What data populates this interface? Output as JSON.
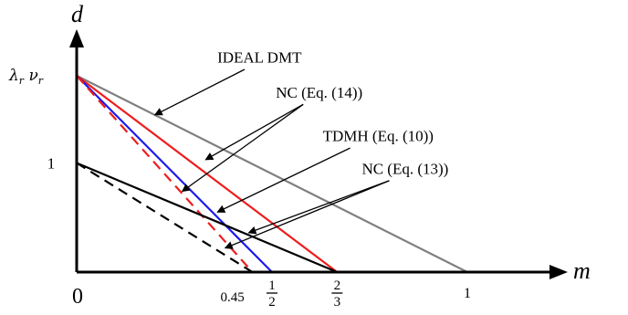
{
  "chart_data": {
    "type": "line",
    "xlabel": "m",
    "ylabel": "d",
    "xlim": [
      0,
      1.2
    ],
    "ylim": [
      0,
      2.2
    ],
    "x_ticks": [
      {
        "value": 0,
        "label": "0",
        "kind": "plain"
      },
      {
        "value": 0.45,
        "label": "0.45",
        "kind": "small"
      },
      {
        "value": 0.5,
        "label": "1/2",
        "kind": "frac",
        "num": "1",
        "den": "2"
      },
      {
        "value": 0.6667,
        "label": "2/3",
        "kind": "frac",
        "num": "2",
        "den": "3"
      },
      {
        "value": 1,
        "label": "1",
        "kind": "plain"
      }
    ],
    "y_ticks": [
      {
        "value": 1,
        "label": "1",
        "kind": "plain"
      },
      {
        "value": 1.8,
        "label": "λr νr",
        "kind": "greek",
        "main1": "λ",
        "sub1": "r",
        "main2": "ν",
        "sub2": "r"
      }
    ],
    "series": [
      {
        "x": [
          0,
          1
        ],
        "y": [
          1.8,
          0
        ],
        "color": "#808080",
        "dash": false
      },
      {
        "x": [
          0,
          0.6667
        ],
        "y": [
          1.8,
          0
        ],
        "color": "#ee1c1c",
        "dash": false
      },
      {
        "x": [
          0,
          0.5
        ],
        "y": [
          1.8,
          0
        ],
        "color": "#1a1aee",
        "dash": false
      },
      {
        "x": [
          0,
          0.45
        ],
        "y": [
          1.8,
          0
        ],
        "color": "#ee1c1c",
        "dash": true
      },
      {
        "x": [
          0,
          0.6667
        ],
        "y": [
          1,
          0
        ],
        "color": "#000000",
        "dash": false
      },
      {
        "x": [
          0,
          0.45
        ],
        "y": [
          1,
          0
        ],
        "color": "#000000",
        "dash": true
      }
    ],
    "annotations": [
      {
        "text": "IDEAL DMT",
        "anchor": [
          0.07,
          1.05
        ],
        "label_at": [
          0.36,
          1.92
        ],
        "targets": [
          [
            0.2,
            1.44
          ]
        ]
      },
      {
        "text": "NC (Eq. (14))",
        "anchor": [
          0.07,
          1.05
        ],
        "label_at": [
          0.51,
          1.6
        ],
        "targets": [
          [
            0.33,
            1.03
          ],
          [
            0.27,
            0.74
          ]
        ]
      },
      {
        "text": "TDMH (Eq. (10))",
        "anchor": [
          0.07,
          1.05
        ],
        "label_at": [
          0.63,
          1.2
        ],
        "targets": [
          [
            0.36,
            0.55
          ]
        ]
      },
      {
        "text": "NC (Eq. (13))",
        "anchor": [
          0.07,
          1.05
        ],
        "label_at": [
          0.73,
          0.9
        ],
        "targets": [
          [
            0.44,
            0.36
          ],
          [
            0.38,
            0.22
          ]
        ]
      }
    ]
  }
}
